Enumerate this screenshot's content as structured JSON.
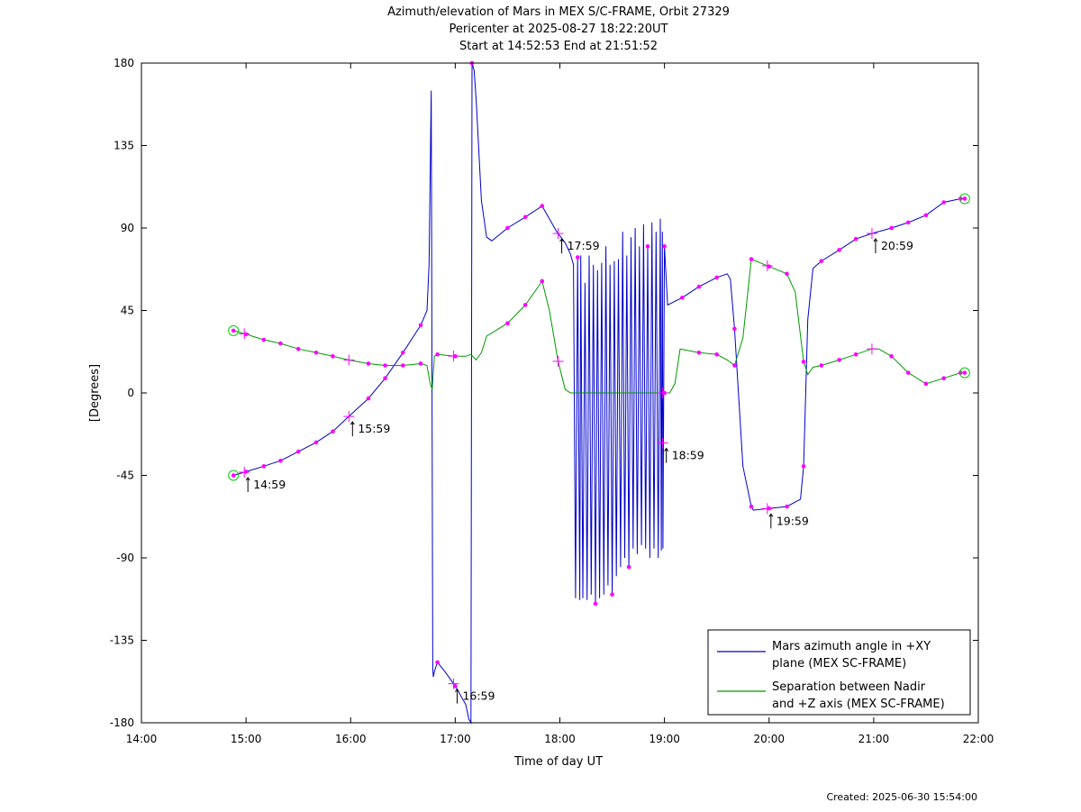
{
  "chart_data": {
    "type": "line",
    "title": [
      "Azimuth/elevation of Mars in MEX S/C-FRAME,  Orbit 27329",
      "Pericenter at 2025-08-27 18:22:20UT",
      "Start at 14:52:53 End at 21:51:52"
    ],
    "xlabel": "Time of day UT",
    "ylabel": "[Degrees]",
    "x_unit": "hours of day",
    "xlim": [
      14,
      22
    ],
    "ylim": [
      -180,
      180
    ],
    "xticks": [
      14,
      15,
      16,
      17,
      18,
      19,
      20,
      21,
      22
    ],
    "xtick_labels": [
      "14:00",
      "15:00",
      "16:00",
      "17:00",
      "18:00",
      "19:00",
      "20:00",
      "21:00",
      "22:00"
    ],
    "yticks": [
      180,
      135,
      90,
      45,
      0,
      -45,
      -90,
      -135,
      -180
    ],
    "ytick_labels": [
      "180",
      "135",
      "90",
      "45",
      "0",
      "-45",
      "-90",
      "-135",
      "-180"
    ],
    "grid": false,
    "legend_position": "bottom-right",
    "series": [
      {
        "name": "Mars azimuth angle in +XY plane (MEX SC-FRAME)",
        "legend_lines": [
          "Mars azimuth angle in +XY",
          "plane (MEX SC-FRAME)"
        ],
        "color": "#0000cc",
        "x": [
          14.88,
          15.0,
          15.17,
          15.33,
          15.5,
          15.67,
          15.83,
          15.98,
          16.17,
          16.33,
          16.5,
          16.67,
          16.73,
          16.75,
          16.77,
          16.785,
          16.79,
          16.8,
          16.83,
          16.9,
          17.0,
          17.1,
          17.13,
          17.15,
          17.16,
          17.18,
          17.2,
          17.25,
          17.3,
          17.35,
          17.5,
          17.67,
          17.83,
          17.97,
          18.05,
          18.1,
          18.12,
          18.13,
          18.15,
          18.17,
          18.19,
          18.2,
          18.22,
          18.24,
          18.26,
          18.28,
          18.3,
          18.32,
          18.34,
          18.36,
          18.38,
          18.4,
          18.42,
          18.44,
          18.46,
          18.48,
          18.5,
          18.52,
          18.54,
          18.56,
          18.58,
          18.6,
          18.62,
          18.64,
          18.66,
          18.68,
          18.7,
          18.72,
          18.74,
          18.76,
          18.78,
          18.8,
          18.82,
          18.84,
          18.86,
          18.88,
          18.9,
          18.92,
          18.94,
          18.96,
          18.97,
          18.98,
          18.985,
          19.0,
          19.03,
          19.1,
          19.17,
          19.33,
          19.5,
          19.6,
          19.63,
          19.67,
          19.75,
          19.83,
          19.85,
          20.0,
          20.17,
          20.3,
          20.33,
          20.37,
          20.42,
          20.5,
          20.67,
          20.83,
          20.98,
          21.17,
          21.33,
          21.5,
          21.67,
          21.83,
          21.87
        ],
        "y": [
          -45,
          -43,
          -40,
          -37,
          -32,
          -27,
          -21,
          -13,
          -3,
          8,
          22,
          37,
          45,
          70,
          165,
          -150,
          -155,
          -152,
          -147,
          -152,
          -160,
          -170,
          -178,
          -180,
          180,
          176,
          160,
          105,
          85,
          83,
          90,
          96,
          102,
          88,
          82,
          76,
          72,
          70,
          -112,
          74,
          -113,
          75,
          -112,
          60,
          -113,
          75,
          -110,
          70,
          -115,
          67,
          -112,
          71,
          -110,
          80,
          -105,
          70,
          -110,
          72,
          -100,
          73,
          -95,
          88,
          -90,
          75,
          -95,
          85,
          -85,
          90,
          -88,
          80,
          -83,
          92,
          -85,
          80,
          -90,
          93,
          -85,
          88,
          -90,
          95,
          -86,
          88,
          -85,
          80,
          48,
          50,
          52,
          58,
          63,
          65,
          62,
          35,
          -40,
          -62,
          -64,
          -63,
          -62,
          -58,
          -40,
          40,
          68,
          72,
          78,
          84,
          87,
          90,
          93,
          97,
          104,
          106,
          106
        ]
      },
      {
        "name": "Separation between Nadir and +Z axis (MEX SC-FRAME)",
        "legend_lines": [
          "Separation between Nadir",
          "and +Z axis (MEX SC-FRAME)"
        ],
        "color": "#009900",
        "x": [
          14.88,
          15.0,
          15.17,
          15.33,
          15.5,
          15.67,
          15.83,
          15.98,
          16.17,
          16.33,
          16.5,
          16.67,
          16.73,
          16.76,
          16.78,
          16.8,
          16.83,
          17.0,
          17.1,
          17.15,
          17.2,
          17.25,
          17.3,
          17.5,
          17.67,
          17.83,
          17.9,
          17.98,
          18.05,
          18.1,
          18.2,
          18.3,
          18.4,
          18.6,
          18.8,
          19.0,
          19.05,
          19.1,
          19.15,
          19.33,
          19.5,
          19.6,
          19.67,
          19.75,
          19.83,
          20.0,
          20.17,
          20.25,
          20.33,
          20.37,
          20.42,
          20.5,
          20.67,
          20.83,
          20.98,
          21.05,
          21.17,
          21.33,
          21.5,
          21.67,
          21.83,
          21.87
        ],
        "y": [
          34,
          32,
          29,
          27,
          24,
          22,
          20,
          18,
          16,
          15,
          15,
          16,
          15,
          5,
          2,
          20,
          21,
          20,
          20,
          21,
          18,
          22,
          31,
          38,
          48,
          61,
          45,
          18,
          2,
          0,
          0,
          0,
          0,
          0,
          0,
          0,
          0,
          5,
          24,
          22,
          21,
          18,
          15,
          30,
          73,
          69,
          65,
          55,
          17,
          10,
          14,
          15,
          18,
          21,
          24,
          24,
          20,
          11,
          5,
          8,
          11,
          11
        ]
      }
    ],
    "annotations": [
      "14:59",
      "15:59",
      "16:59",
      "17:59",
      "18:59",
      "19:59",
      "20:59"
    ],
    "footer": "Created: 2025-06-30 15:54:00"
  }
}
